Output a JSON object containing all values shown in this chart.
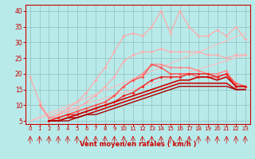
{
  "xlabel": "Vent moyen/en rafales ( km/h )",
  "xlim": [
    -0.5,
    23.5
  ],
  "ylim": [
    4,
    42
  ],
  "xticks": [
    0,
    1,
    2,
    3,
    4,
    5,
    6,
    7,
    8,
    9,
    10,
    11,
    12,
    13,
    14,
    15,
    16,
    17,
    18,
    19,
    20,
    21,
    22,
    23
  ],
  "yticks": [
    5,
    10,
    15,
    20,
    25,
    30,
    35,
    40
  ],
  "bg_color": "#b8eaea",
  "grid_color": "#90c0c0",
  "lines": [
    {
      "x": [
        0,
        23
      ],
      "y": [
        5,
        26
      ],
      "color": "#ffbbbb",
      "lw": 0.8,
      "marker": null,
      "ms": 0
    },
    {
      "x": [
        0,
        23
      ],
      "y": [
        5,
        33
      ],
      "color": "#ffbbbb",
      "lw": 0.8,
      "marker": null,
      "ms": 0
    },
    {
      "x": [
        2,
        3,
        4,
        5,
        6,
        7,
        8,
        9,
        10,
        11,
        12,
        13,
        14,
        15,
        16,
        17,
        18,
        19,
        20,
        21,
        22,
        23
      ],
      "y": [
        6,
        7,
        9,
        11,
        14,
        18,
        22,
        27,
        32,
        33,
        32,
        35,
        40,
        33,
        40,
        35,
        32,
        32,
        34,
        32,
        35,
        31
      ],
      "color": "#ffaaaa",
      "lw": 0.9,
      "marker": "D",
      "ms": 2.0
    },
    {
      "x": [
        0,
        1,
        2,
        3,
        4,
        5,
        6,
        7,
        8,
        9,
        10,
        11,
        12,
        13,
        14,
        15,
        16,
        17,
        18,
        19,
        20,
        21,
        22,
        23
      ],
      "y": [
        19,
        11,
        6,
        7,
        8,
        9,
        11,
        13,
        16,
        19,
        24,
        26,
        27,
        27,
        28,
        27,
        27,
        27,
        27,
        26,
        26,
        25,
        26,
        26
      ],
      "color": "#ffaaaa",
      "lw": 0.9,
      "marker": "D",
      "ms": 2.0
    },
    {
      "x": [
        1,
        2,
        3,
        4,
        5,
        6,
        7,
        8,
        9,
        10,
        11,
        12,
        13,
        14,
        15,
        16,
        17,
        18,
        19,
        20,
        21,
        22,
        23
      ],
      "y": [
        10,
        6,
        6,
        7,
        8,
        9,
        10,
        11,
        13,
        16,
        18,
        20,
        23,
        23,
        22,
        22,
        22,
        21,
        20,
        20,
        21,
        16,
        16
      ],
      "color": "#ff8888",
      "lw": 1.0,
      "marker": "D",
      "ms": 2.0
    },
    {
      "x": [
        2,
        3,
        4,
        5,
        6,
        7,
        8,
        9,
        10,
        11,
        12,
        13,
        14,
        15,
        16,
        17,
        18,
        19,
        20,
        21,
        22,
        23
      ],
      "y": [
        5,
        6,
        7,
        8,
        9,
        10,
        11,
        13,
        16,
        18,
        19,
        23,
        22,
        20,
        20,
        20,
        19,
        19,
        19,
        20,
        17,
        16
      ],
      "color": "#ff5555",
      "lw": 1.0,
      "marker": "D",
      "ms": 2.0
    },
    {
      "x": [
        2,
        3,
        4,
        5,
        6,
        7,
        8,
        9,
        10,
        11,
        12,
        13,
        14,
        15,
        16,
        17,
        18,
        19,
        20,
        21,
        22,
        23
      ],
      "y": [
        5,
        6,
        7,
        7,
        8,
        9,
        10,
        11,
        13,
        14,
        16,
        18,
        19,
        19,
        19,
        20,
        20,
        20,
        19,
        20,
        16,
        16
      ],
      "color": "#ee2222",
      "lw": 1.0,
      "marker": "D",
      "ms": 2.0
    },
    {
      "x": [
        2,
        3,
        4,
        5,
        6,
        7,
        8,
        9,
        10,
        11,
        12,
        13,
        14,
        15,
        16,
        17,
        18,
        19,
        20,
        21,
        22,
        23
      ],
      "y": [
        5,
        5,
        6,
        7,
        8,
        9,
        10,
        11,
        12,
        13,
        14,
        15,
        16,
        17,
        18,
        18,
        19,
        19,
        18,
        19,
        16,
        16
      ],
      "color": "#cc0000",
      "lw": 1.2,
      "marker": null,
      "ms": 0
    },
    {
      "x": [
        2,
        3,
        4,
        5,
        6,
        7,
        8,
        9,
        10,
        11,
        12,
        13,
        14,
        15,
        16,
        17,
        18,
        19,
        20,
        21,
        22,
        23
      ],
      "y": [
        5,
        5,
        6,
        6,
        7,
        8,
        9,
        10,
        11,
        12,
        13,
        14,
        15,
        16,
        17,
        17,
        17,
        17,
        17,
        17,
        15,
        15
      ],
      "color": "#cc0000",
      "lw": 1.2,
      "marker": null,
      "ms": 0
    },
    {
      "x": [
        2,
        3,
        4,
        5,
        6,
        7,
        8,
        9,
        10,
        11,
        12,
        13,
        14,
        15,
        16,
        17,
        18,
        19,
        20,
        21,
        22,
        23
      ],
      "y": [
        5,
        5,
        5,
        6,
        7,
        7,
        8,
        9,
        10,
        11,
        12,
        13,
        14,
        15,
        16,
        16,
        16,
        16,
        16,
        16,
        15,
        15
      ],
      "color": "#aa0000",
      "lw": 1.0,
      "marker": null,
      "ms": 0
    }
  ],
  "tick_color": "#cc0000",
  "label_color": "#cc0000",
  "axis_color": "#cc0000"
}
